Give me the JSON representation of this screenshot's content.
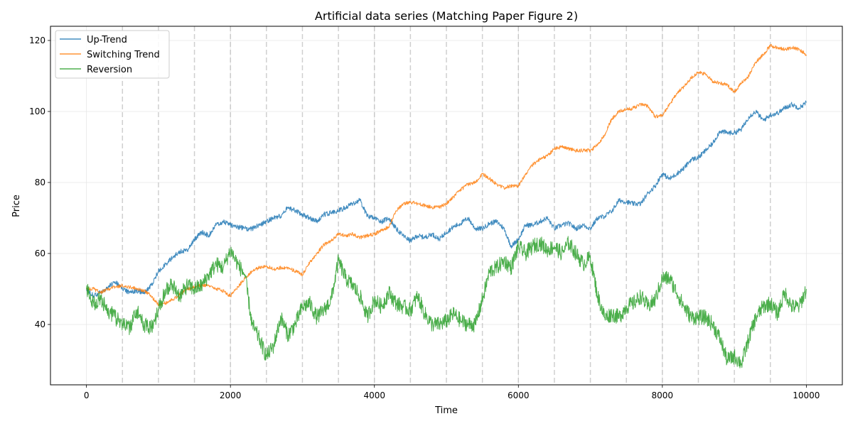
{
  "chart_data": {
    "type": "line",
    "title": "Artificial data series (Matching Paper Figure 2)",
    "xlabel": "Time",
    "ylabel": "Price",
    "xlim": [
      -500,
      10500
    ],
    "ylim": [
      23,
      124
    ],
    "xticks": [
      0,
      2000,
      4000,
      6000,
      8000,
      10000
    ],
    "yticks": [
      40,
      60,
      80,
      100,
      120
    ],
    "grid": true,
    "legend_position": "top-left",
    "vertical_markers": [
      500,
      1000,
      1500,
      2000,
      2500,
      3000,
      3500,
      4000,
      4500,
      5000,
      5500,
      6000,
      6500,
      7000,
      7500,
      8000,
      8500,
      9000,
      9500
    ],
    "series": [
      {
        "name": "Up-Trend",
        "color": "#1f77b4",
        "x": [
          0,
          100,
          200,
          300,
          400,
          500,
          600,
          700,
          800,
          900,
          1000,
          1100,
          1200,
          1300,
          1400,
          1500,
          1600,
          1700,
          1800,
          1900,
          2000,
          2100,
          2200,
          2300,
          2400,
          2500,
          2600,
          2700,
          2800,
          2900,
          3000,
          3100,
          3200,
          3300,
          3400,
          3500,
          3600,
          3700,
          3800,
          3900,
          4000,
          4100,
          4200,
          4300,
          4400,
          4500,
          4600,
          4700,
          4800,
          4900,
          5000,
          5100,
          5200,
          5300,
          5400,
          5500,
          5600,
          5700,
          5800,
          5900,
          6000,
          6100,
          6200,
          6300,
          6400,
          6500,
          6600,
          6700,
          6800,
          6900,
          7000,
          7100,
          7200,
          7300,
          7400,
          7500,
          7600,
          7700,
          7800,
          7900,
          8000,
          8100,
          8200,
          8300,
          8400,
          8500,
          8600,
          8700,
          8800,
          8900,
          9000,
          9100,
          9200,
          9300,
          9400,
          9500,
          9600,
          9700,
          9800,
          9900,
          10000
        ],
        "y": [
          50,
          48,
          49,
          50.5,
          52,
          50,
          49,
          49.5,
          49,
          51,
          55,
          57,
          59,
          60.5,
          61,
          64,
          66,
          65,
          68,
          69,
          68,
          67.5,
          67,
          67,
          68,
          69,
          70,
          70.5,
          73,
          72,
          71,
          70,
          69,
          71,
          71.5,
          72,
          73,
          74,
          75,
          70.5,
          70,
          69,
          70,
          67,
          65,
          63.5,
          65,
          64.5,
          65.5,
          64,
          66,
          67.5,
          68.5,
          70,
          67,
          67,
          68.5,
          69,
          67,
          62,
          64,
          68,
          68,
          69,
          70,
          67,
          68,
          68.5,
          67,
          68,
          67,
          70,
          70.5,
          72,
          75,
          74.5,
          74,
          74,
          77,
          79,
          82.5,
          81,
          82.5,
          84,
          86.5,
          87,
          89,
          91,
          94.5,
          94,
          94,
          95,
          98.5,
          100,
          97.5,
          99,
          99.5,
          101,
          102,
          101,
          102.5
        ]
      },
      {
        "name": "Switching Trend",
        "color": "#ff7f0e",
        "x": [
          0,
          100,
          200,
          300,
          400,
          500,
          600,
          700,
          800,
          900,
          1000,
          1100,
          1200,
          1300,
          1400,
          1500,
          1600,
          1700,
          1800,
          1900,
          2000,
          2100,
          2200,
          2300,
          2400,
          2500,
          2600,
          2700,
          2800,
          2900,
          3000,
          3100,
          3200,
          3300,
          3400,
          3500,
          3600,
          3700,
          3800,
          3900,
          4000,
          4100,
          4200,
          4300,
          4400,
          4500,
          4600,
          4700,
          4800,
          4900,
          5000,
          5100,
          5200,
          5300,
          5400,
          5500,
          5600,
          5700,
          5800,
          5900,
          6000,
          6100,
          6200,
          6300,
          6400,
          6500,
          6600,
          6700,
          6800,
          6900,
          7000,
          7100,
          7200,
          7300,
          7400,
          7500,
          7600,
          7700,
          7800,
          7900,
          8000,
          8100,
          8200,
          8300,
          8400,
          8500,
          8600,
          8700,
          8800,
          8900,
          9000,
          9100,
          9200,
          9300,
          9400,
          9500,
          9600,
          9700,
          9800,
          9900,
          10000
        ],
        "y": [
          50,
          50,
          49,
          50,
          50.5,
          51,
          50.5,
          50,
          49.5,
          48,
          45.5,
          46,
          47,
          48.5,
          50,
          50.5,
          51,
          51,
          50,
          49.5,
          48,
          50.5,
          53,
          55,
          56,
          56.5,
          55.5,
          56,
          56,
          55,
          54,
          57.5,
          60,
          62.5,
          63.5,
          65.5,
          65,
          65.5,
          64.5,
          65,
          65.5,
          66.5,
          67.5,
          72,
          74,
          74.5,
          74,
          73.5,
          73,
          73,
          74,
          76,
          78,
          79.5,
          80,
          82.5,
          81,
          79.5,
          78.5,
          79,
          79,
          82.5,
          85,
          86.5,
          87.5,
          89.5,
          90,
          89.5,
          89,
          89,
          89,
          90.5,
          93.5,
          98,
          100,
          100.5,
          101,
          102,
          101.5,
          98.5,
          99,
          102,
          105,
          107,
          109.5,
          111,
          110.5,
          108.5,
          108,
          107.5,
          105.5,
          108,
          110,
          114,
          116,
          118.5,
          118,
          117.5,
          118,
          117.5,
          116
        ]
      },
      {
        "name": "Reversion",
        "color": "#2ca02c",
        "x": [
          0,
          100,
          200,
          300,
          400,
          500,
          600,
          700,
          800,
          900,
          1000,
          1100,
          1200,
          1300,
          1400,
          1500,
          1600,
          1700,
          1800,
          1900,
          2000,
          2100,
          2200,
          2300,
          2400,
          2500,
          2600,
          2700,
          2800,
          2900,
          3000,
          3100,
          3200,
          3300,
          3400,
          3500,
          3600,
          3700,
          3800,
          3900,
          4000,
          4100,
          4200,
          4300,
          4400,
          4500,
          4600,
          4700,
          4800,
          4900,
          5000,
          5100,
          5200,
          5300,
          5400,
          5500,
          5600,
          5700,
          5800,
          5900,
          6000,
          6100,
          6200,
          6300,
          6400,
          6500,
          6600,
          6700,
          6800,
          6900,
          7000,
          7100,
          7200,
          7300,
          7400,
          7500,
          7600,
          7700,
          7800,
          7900,
          8000,
          8100,
          8200,
          8300,
          8400,
          8500,
          8600,
          8700,
          8800,
          8900,
          9000,
          9100,
          9200,
          9300,
          9400,
          9500,
          9600,
          9700,
          9800,
          9900,
          10000
        ],
        "y": [
          50,
          46,
          47,
          44,
          42,
          40,
          39,
          44,
          40,
          39,
          44,
          50,
          51,
          48,
          51,
          50,
          51,
          54,
          57,
          56,
          61,
          57,
          54,
          40,
          36,
          31,
          34,
          42,
          37,
          40,
          45,
          46,
          42,
          44,
          47,
          58,
          53,
          51,
          48,
          42,
          47,
          45,
          49,
          46,
          45,
          44,
          48,
          43,
          40,
          40,
          41,
          43,
          41,
          40,
          40,
          47,
          55,
          56,
          58,
          56,
          62,
          60,
          62,
          63,
          61,
          62,
          60,
          63,
          60,
          57,
          59,
          48,
          42,
          43,
          42,
          45,
          46,
          48,
          45,
          47,
          53,
          53,
          49,
          45,
          42,
          42,
          42,
          40,
          36,
          30,
          31,
          29,
          36,
          42,
          45,
          46,
          43,
          49,
          45,
          45,
          50
        ]
      }
    ]
  }
}
